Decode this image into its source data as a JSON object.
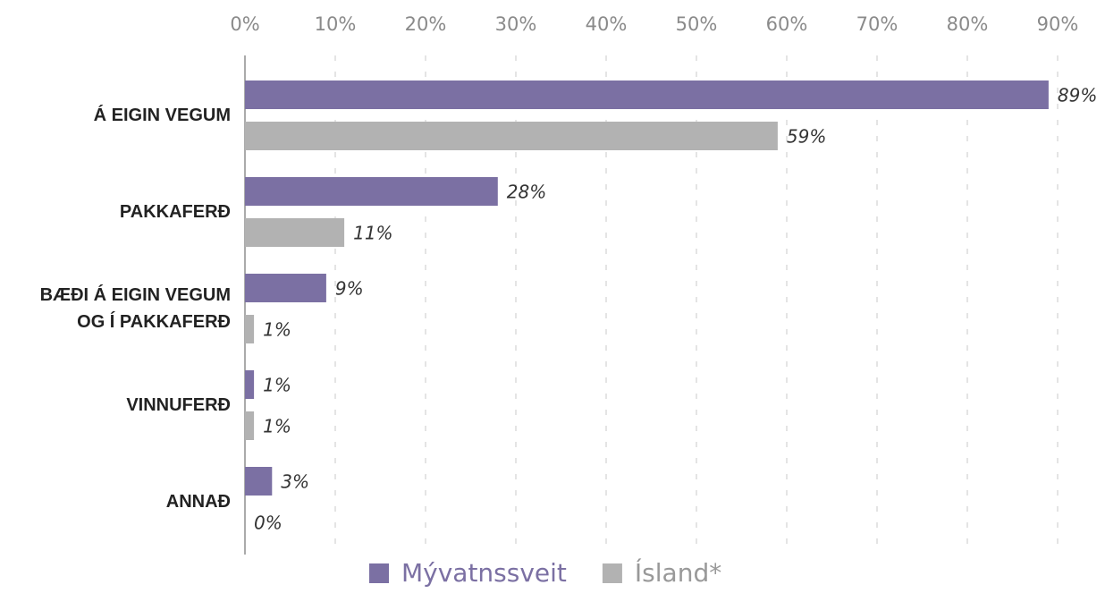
{
  "chart_data": {
    "type": "bar",
    "orientation": "horizontal",
    "categories": [
      "Á EIGIN VEGUM",
      "PAKKAFERÐ",
      "BÆÐI Á EIGIN VEGUM\nOG Í PAKKAFERÐ",
      "VINNUFERÐ",
      "ANNAÐ"
    ],
    "series": [
      {
        "name": "Mývatnssveit",
        "color": "#7b70a3",
        "values": [
          89,
          28,
          9,
          1,
          3
        ],
        "value_labels": [
          "89%",
          "28%",
          "9%",
          "1%",
          "3%"
        ]
      },
      {
        "name": "Ísland*",
        "color": "#b2b2b2",
        "values": [
          59,
          11,
          1,
          1,
          0
        ],
        "value_labels": [
          "59%",
          "11%",
          "1%",
          "1%",
          "0%"
        ]
      }
    ],
    "xlim": [
      0,
      90
    ],
    "xticks": [
      {
        "value": 0,
        "label": "0%"
      },
      {
        "value": 10,
        "label": "10%"
      },
      {
        "value": 20,
        "label": "20%"
      },
      {
        "value": 30,
        "label": "30%"
      },
      {
        "value": 40,
        "label": "40%"
      },
      {
        "value": 50,
        "label": "50%"
      },
      {
        "value": 60,
        "label": "60%"
      },
      {
        "value": 70,
        "label": "70%"
      },
      {
        "value": 80,
        "label": "80%"
      },
      {
        "value": 90,
        "label": "90%"
      }
    ],
    "grid": true,
    "legend": "bottom"
  }
}
